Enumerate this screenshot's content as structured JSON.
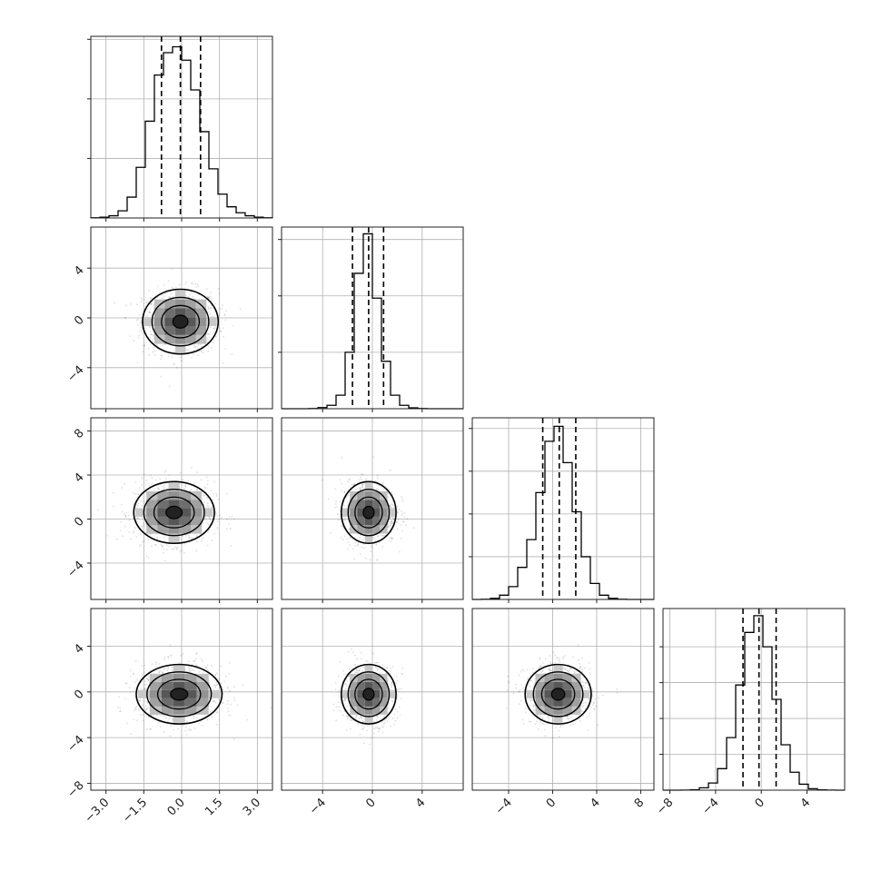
{
  "chart_data": {
    "type": "corner",
    "grid": true,
    "panels": [
      {
        "row": 0,
        "col": 0,
        "kind": "histogram",
        "xlim": [
          -3.6,
          3.6
        ],
        "bin_edges": [
          -3.6,
          -3.24,
          -2.88,
          -2.52,
          -2.16,
          -1.8,
          -1.44,
          -1.08,
          -0.72,
          -0.36,
          0,
          0.36,
          0.72,
          1.08,
          1.44,
          1.8,
          2.16,
          2.52,
          2.88,
          3.24,
          3.6
        ],
        "counts": [
          1,
          5,
          15,
          48,
          140,
          340,
          650,
          960,
          1110,
          1150,
          1060,
          860,
          580,
          330,
          160,
          75,
          35,
          15,
          5,
          1
        ],
        "quantile_lines": [
          -0.8,
          -0.05,
          0.75
        ],
        "yticks": [
          400,
          800,
          1200
        ],
        "ymax": 1220
      },
      {
        "row": 1,
        "col": 0,
        "kind": "scatter2d",
        "xlim": [
          -3.6,
          3.6
        ],
        "ylim": [
          -7.3,
          7.3
        ],
        "center": [
          -0.05,
          -0.3
        ],
        "sigma": [
          0.75,
          1.3
        ],
        "yticks": [
          4,
          0,
          -4
        ],
        "ytick_labels": [
          "4",
          "0",
          "−4"
        ]
      },
      {
        "row": 1,
        "col": 1,
        "kind": "histogram",
        "xlim": [
          -7.3,
          7.3
        ],
        "bin_edges": [
          -7.3,
          -6.57,
          -5.84,
          -5.11,
          -4.38,
          -3.65,
          -2.92,
          -2.19,
          -1.46,
          -0.73,
          0,
          0.73,
          1.46,
          2.19,
          2.92,
          3.65,
          4.38,
          5.11,
          5.84,
          6.57,
          7.3
        ],
        "counts": [
          0,
          0,
          0,
          2,
          10,
          30,
          120,
          500,
          1200,
          1550,
          980,
          420,
          120,
          30,
          8,
          2,
          0,
          0,
          0,
          0
        ],
        "quantile_lines": [
          -1.6,
          -0.3,
          0.9
        ],
        "yticks": [
          500,
          1000,
          1500
        ],
        "ymax": 1610
      },
      {
        "row": 2,
        "col": 0,
        "kind": "scatter2d",
        "xlim": [
          -3.6,
          3.6
        ],
        "ylim": [
          -7.3,
          9.2
        ],
        "center": [
          -0.3,
          0.6
        ],
        "sigma": [
          0.8,
          1.4
        ],
        "yticks": [
          8,
          4,
          0,
          -4
        ],
        "ytick_labels": [
          "8",
          "4",
          "0",
          "−4"
        ]
      },
      {
        "row": 2,
        "col": 1,
        "kind": "scatter2d",
        "xlim": [
          -7.3,
          7.3
        ],
        "ylim": [
          -7.3,
          9.2
        ],
        "center": [
          -0.3,
          0.6
        ],
        "sigma": [
          1.1,
          1.4
        ]
      },
      {
        "row": 2,
        "col": 2,
        "kind": "histogram",
        "xlim": [
          -7.3,
          9.2
        ],
        "bin_edges": [
          -7.3,
          -6.475,
          -5.65,
          -4.825,
          -4.0,
          -3.175,
          -2.35,
          -1.525,
          -0.7,
          0.125,
          0.95,
          1.775,
          2.6,
          3.425,
          4.25,
          5.075,
          5.9,
          6.725,
          7.55,
          8.375,
          9.2
        ],
        "counts": [
          0,
          2,
          10,
          40,
          120,
          300,
          560,
          1000,
          1480,
          1620,
          1280,
          820,
          400,
          150,
          40,
          10,
          2,
          0,
          0,
          0
        ],
        "quantile_lines": [
          -0.9,
          0.6,
          2.1
        ],
        "yticks": [
          400,
          800,
          1200,
          1600
        ],
        "ymax": 1700
      },
      {
        "row": 3,
        "col": 0,
        "kind": "scatter2d",
        "xlim": [
          -3.6,
          3.6
        ],
        "ylim": [
          -8.6,
          7.3
        ],
        "center": [
          -0.1,
          -0.2
        ],
        "sigma": [
          0.85,
          1.3
        ],
        "yticks": [
          4,
          0,
          -4,
          -8
        ],
        "ytick_labels": [
          "4",
          "0",
          "−4",
          "−8"
        ],
        "xticks": [
          -3.0,
          -1.5,
          0.0,
          1.5,
          3.0
        ],
        "xtick_labels": [
          "−3.0",
          "−1.5",
          "0.0",
          "1.5",
          "3.0"
        ]
      },
      {
        "row": 3,
        "col": 1,
        "kind": "scatter2d",
        "xlim": [
          -7.3,
          7.3
        ],
        "ylim": [
          -8.6,
          7.3
        ],
        "center": [
          -0.3,
          -0.2
        ],
        "sigma": [
          1.1,
          1.3
        ],
        "xticks": [
          -4,
          0,
          4
        ],
        "xtick_labels": [
          "−4",
          "0",
          "4"
        ]
      },
      {
        "row": 3,
        "col": 2,
        "kind": "scatter2d",
        "xlim": [
          -7.3,
          9.2
        ],
        "ylim": [
          -8.6,
          7.3
        ],
        "center": [
          0.5,
          -0.2
        ],
        "sigma": [
          1.5,
          1.3
        ],
        "xticks": [
          -4,
          0,
          4,
          8
        ],
        "xtick_labels": [
          "−4",
          "0",
          "4",
          "8"
        ]
      },
      {
        "row": 3,
        "col": 3,
        "kind": "histogram",
        "xlim": [
          -8.6,
          7.3
        ],
        "bin_edges": [
          -8.6,
          -7.805,
          -7.01,
          -6.215,
          -5.42,
          -4.625,
          -3.83,
          -3.035,
          -2.24,
          -1.445,
          -0.65,
          0.145,
          0.94,
          1.735,
          2.53,
          3.325,
          4.12,
          4.915,
          5.71,
          6.505,
          7.3
        ],
        "counts": [
          0,
          0,
          1,
          4,
          20,
          60,
          180,
          440,
          880,
          1320,
          1460,
          1200,
          760,
          380,
          150,
          50,
          12,
          3,
          1,
          0
        ],
        "quantile_lines": [
          -1.6,
          -0.2,
          1.3
        ],
        "yticks": [
          300,
          600,
          900,
          1200
        ],
        "ymax": 1520,
        "xticks": [
          -8,
          -4,
          0,
          4
        ],
        "xtick_labels": [
          "−8",
          "−4",
          "0",
          "4"
        ]
      }
    ]
  }
}
